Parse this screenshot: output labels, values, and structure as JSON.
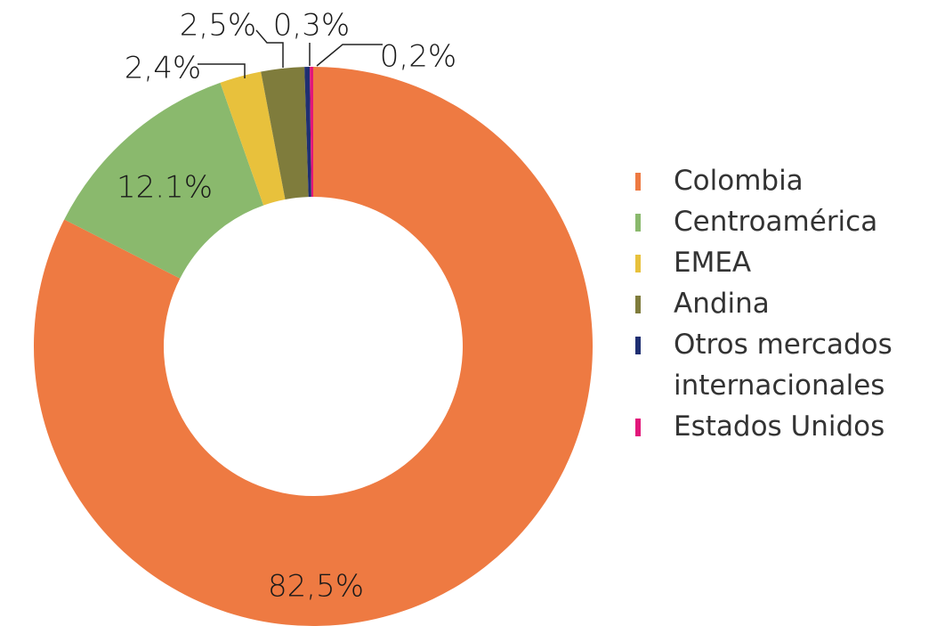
{
  "chart_data": {
    "type": "pie",
    "categories": [
      "Colombia",
      "Centroamérica",
      "EMEA",
      "Andina",
      "Otros mercados internacionales",
      "Estados Unidos"
    ],
    "values": [
      82.5,
      12.1,
      2.4,
      2.5,
      0.3,
      0.2
    ],
    "value_labels": [
      "82,5%",
      "12.1%",
      "2,4%",
      "2,5%",
      "0,3%",
      "0,2%"
    ],
    "colors": [
      "#ee7a42",
      "#8ab96d",
      "#e8c13c",
      "#7f7c3c",
      "#1f2f72",
      "#e2177a"
    ],
    "donut": true,
    "legend": "right"
  }
}
